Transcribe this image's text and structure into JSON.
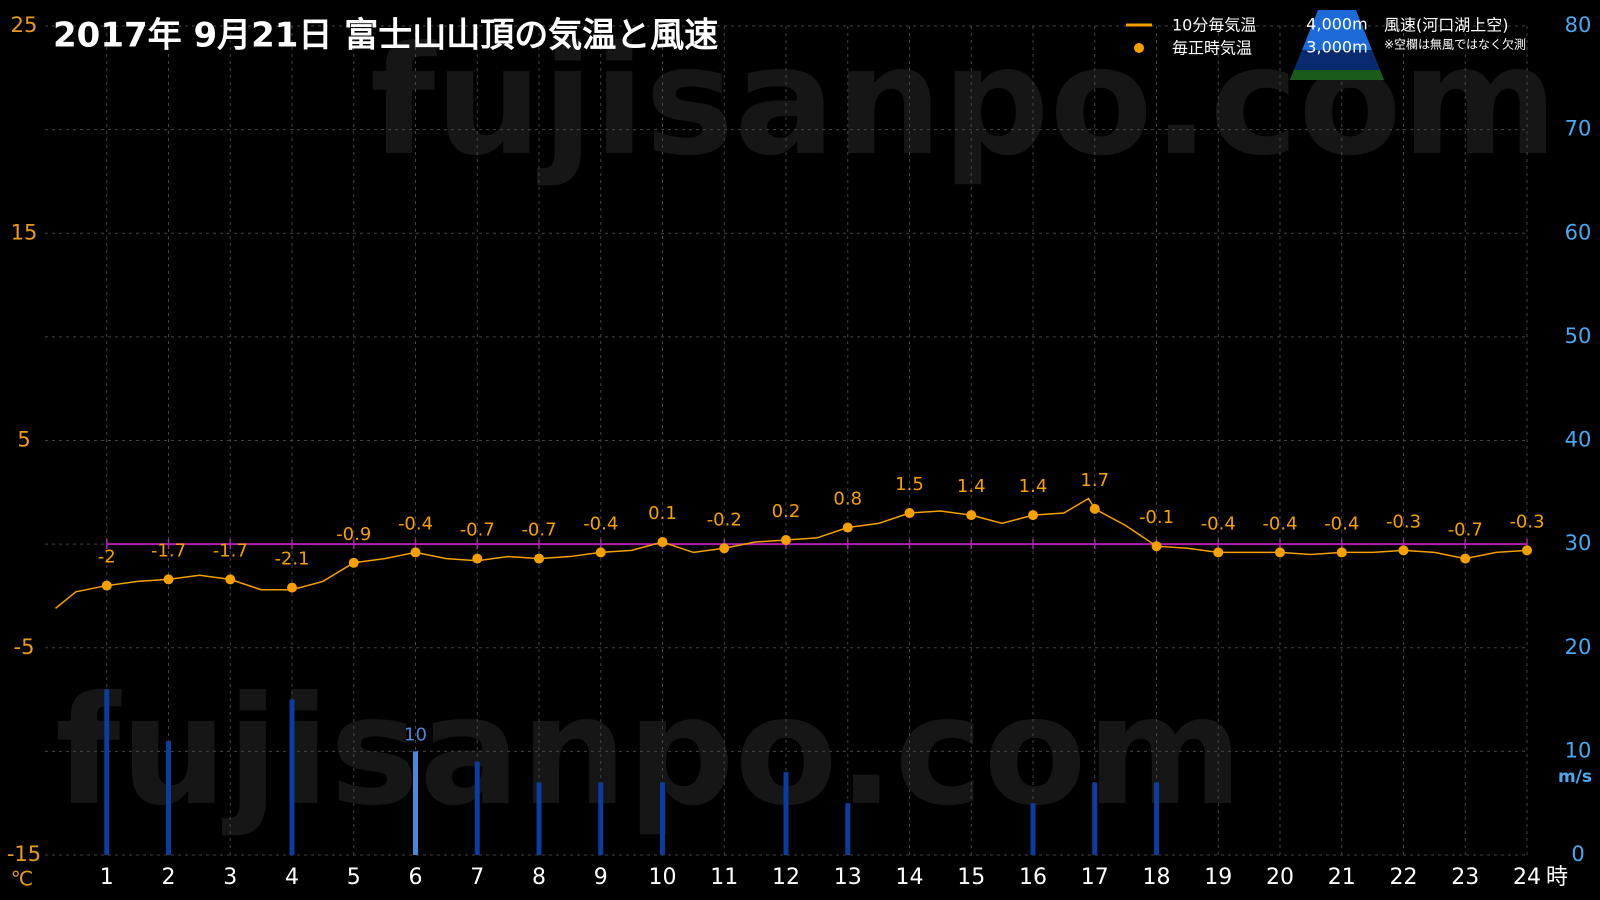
{
  "chart_data": {
    "type": "line",
    "title": "2017年  9月21日   富士山山頂の気温と風速",
    "watermark": "fujisanpo.com",
    "x_label": "時",
    "y_label": "℃",
    "y2_label": "m/s",
    "xlim": [
      0,
      24
    ],
    "xticks": [
      1,
      2,
      3,
      4,
      5,
      6,
      7,
      8,
      9,
      10,
      11,
      12,
      13,
      14,
      15,
      16,
      17,
      18,
      19,
      20,
      21,
      22,
      23,
      24
    ],
    "ylim": [
      -15,
      25
    ],
    "yticks": [
      -15,
      -5,
      5,
      15,
      25
    ],
    "y2lim": [
      0,
      80
    ],
    "y2ticks": [
      0,
      10,
      20,
      30,
      40,
      50,
      60,
      70,
      80
    ],
    "grid": true,
    "reference_line": {
      "value": 0,
      "color": "#b020b0"
    },
    "legend": {
      "position": "upper right"
    },
    "inset": {
      "labels": [
        "4,000m",
        "3,000m"
      ],
      "note": "※空欄は無風ではなく欠測"
    },
    "series": [
      {
        "name": "10分毎気温",
        "type": "line",
        "color": "#f5a000",
        "x": [
          0.17,
          0.5,
          1,
          1.5,
          2,
          2.5,
          3,
          3.5,
          4,
          4.5,
          5,
          5.5,
          6,
          6.5,
          7,
          7.5,
          8,
          8.5,
          9,
          9.5,
          10,
          10.5,
          11,
          11.5,
          12,
          12.5,
          13,
          13.5,
          14,
          14.5,
          15,
          15.5,
          16,
          16.5,
          16.9,
          17,
          17.5,
          18,
          18.5,
          19,
          19.5,
          20,
          20.5,
          21,
          21.5,
          22,
          22.5,
          23,
          23.5,
          24
        ],
        "values": [
          -3.1,
          -2.3,
          -2.0,
          -1.8,
          -1.7,
          -1.5,
          -1.7,
          -2.2,
          -2.2,
          -1.8,
          -0.9,
          -0.7,
          -0.4,
          -0.7,
          -0.8,
          -0.6,
          -0.7,
          -0.6,
          -0.4,
          -0.3,
          0.1,
          -0.4,
          -0.2,
          0.1,
          0.2,
          0.3,
          0.8,
          1.0,
          1.5,
          1.6,
          1.4,
          1.0,
          1.4,
          1.5,
          2.2,
          1.7,
          0.9,
          -0.1,
          -0.2,
          -0.4,
          -0.4,
          -0.4,
          -0.5,
          -0.4,
          -0.4,
          -0.3,
          -0.4,
          -0.7,
          -0.4,
          -0.3
        ]
      },
      {
        "name": "毎正時気温",
        "type": "scatter",
        "color": "#f5a000",
        "x": [
          1,
          2,
          3,
          4,
          5,
          6,
          7,
          8,
          9,
          10,
          11,
          12,
          13,
          14,
          15,
          16,
          17,
          18,
          19,
          20,
          21,
          22,
          23,
          24
        ],
        "values": [
          -2,
          -1.7,
          -1.7,
          -2.1,
          -0.9,
          -0.4,
          -0.7,
          -0.7,
          -0.4,
          0.1,
          -0.2,
          0.2,
          0.8,
          1.5,
          1.4,
          1.4,
          1.7,
          -0.1,
          -0.4,
          -0.4,
          -0.4,
          -0.3,
          -0.7,
          -0.3
        ]
      },
      {
        "name": "風速(河口湖上空)",
        "type": "bar",
        "axis": "y2",
        "color": "#0c3c9c",
        "highlight_color": "#4a88d8",
        "highlight_index": 5,
        "x": [
          1,
          2,
          3,
          4,
          5,
          6,
          7,
          8,
          9,
          10,
          11,
          12,
          13,
          14,
          15,
          16,
          17,
          18,
          19,
          20,
          21,
          22,
          23,
          24
        ],
        "values": [
          16,
          11,
          null,
          15,
          null,
          10,
          9,
          7,
          7,
          7,
          null,
          8,
          5,
          null,
          null,
          5,
          7,
          7,
          null,
          null,
          null,
          null,
          null,
          null
        ]
      }
    ]
  }
}
